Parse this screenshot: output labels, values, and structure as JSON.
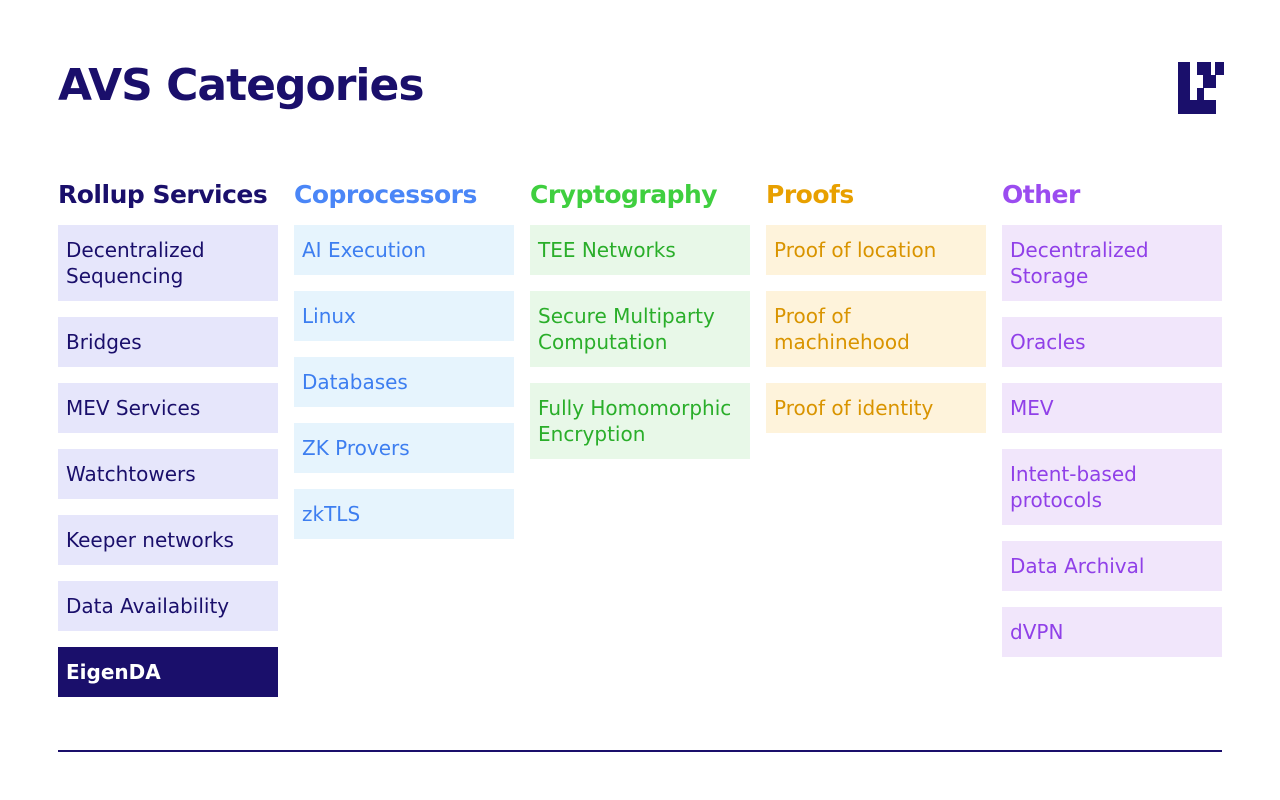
{
  "title": "AVS Categories",
  "colors": {
    "rollup": "#1a0f6b",
    "coprocessors": "#4a86f7",
    "cryptography": "#3fcf3f",
    "proofs": "#e8a000",
    "other": "#9b4cf0"
  },
  "columns": [
    {
      "heading": "Rollup Services",
      "items": [
        "Decentralized Sequencing",
        "Bridges",
        "MEV Services",
        "Watchtowers",
        "Keeper networks",
        "Data Availability",
        "EigenDA"
      ],
      "highlighted": "EigenDA"
    },
    {
      "heading": "Coprocessors",
      "items": [
        "AI Execution",
        "Linux",
        "Databases",
        "ZK Provers",
        "zkTLS"
      ]
    },
    {
      "heading": "Cryptography",
      "items": [
        "TEE Networks",
        "Secure Multiparty Computation",
        "Fully Homomorphic Encryption"
      ]
    },
    {
      "heading": "Proofs",
      "items": [
        "Proof of location",
        "Proof of machinehood",
        "Proof of identity"
      ]
    },
    {
      "heading": "Other",
      "items": [
        "Decentralized Storage",
        "Oracles",
        "MEV",
        "Intent-based protocols",
        "Data Archival",
        "dVPN"
      ]
    }
  ]
}
